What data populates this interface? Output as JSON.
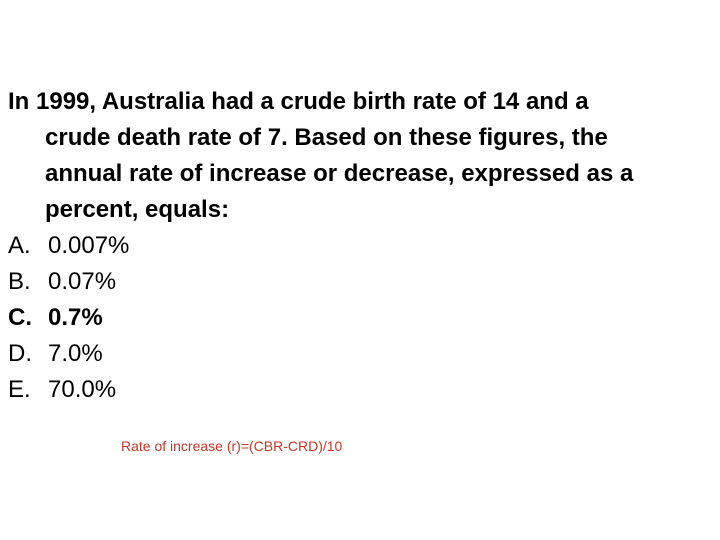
{
  "question": {
    "line1": "In 1999, Australia had a crude birth rate of 14 and a",
    "line2": "crude death rate of 7. Based on these figures, the",
    "line3": "annual rate of increase or decrease, expressed as a",
    "line4": "percent, equals:"
  },
  "options": [
    {
      "letter": "A.",
      "text": "0.007%",
      "correct": false
    },
    {
      "letter": "B.",
      "text": "0.07%",
      "correct": false
    },
    {
      "letter": "C.",
      "text": "0.7%",
      "correct": true
    },
    {
      "letter": "D.",
      "text": "7.0%",
      "correct": false
    },
    {
      "letter": "E.",
      "text": "70.0%",
      "correct": false
    }
  ],
  "note": {
    "formula": "Rate of increase (r)=(CBR-CRD)/10",
    "color": "#c0392b"
  }
}
